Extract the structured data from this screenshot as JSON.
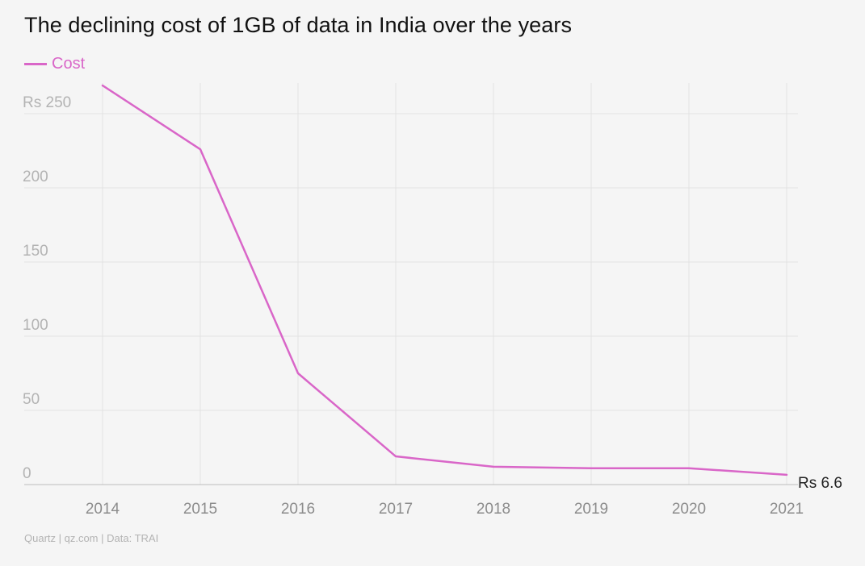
{
  "colors": {
    "series": "#d966c8",
    "grid": "#e2e2e2",
    "axis": "#bdbdbd"
  },
  "source": "Quartz | qz.com | Data: TRAI",
  "chart_data": {
    "type": "line",
    "title": "The declining cost of 1GB of data in India over the years",
    "xlabel": "",
    "ylabel": "",
    "x": [
      "2014",
      "2015",
      "2016",
      "2017",
      "2018",
      "2019",
      "2020",
      "2021"
    ],
    "series": [
      {
        "name": "Cost",
        "values": [
          269,
          226,
          75,
          19,
          12,
          11,
          11,
          6.6
        ]
      }
    ],
    "ylim": [
      0,
      250
    ],
    "yticks": [
      0,
      50,
      100,
      150,
      200,
      250
    ],
    "ytick_labels": [
      "0",
      "50",
      "100",
      "150",
      "200",
      "Rs 250"
    ],
    "end_label": "Rs 6.6",
    "grid": true,
    "legend_position": "top-left"
  }
}
